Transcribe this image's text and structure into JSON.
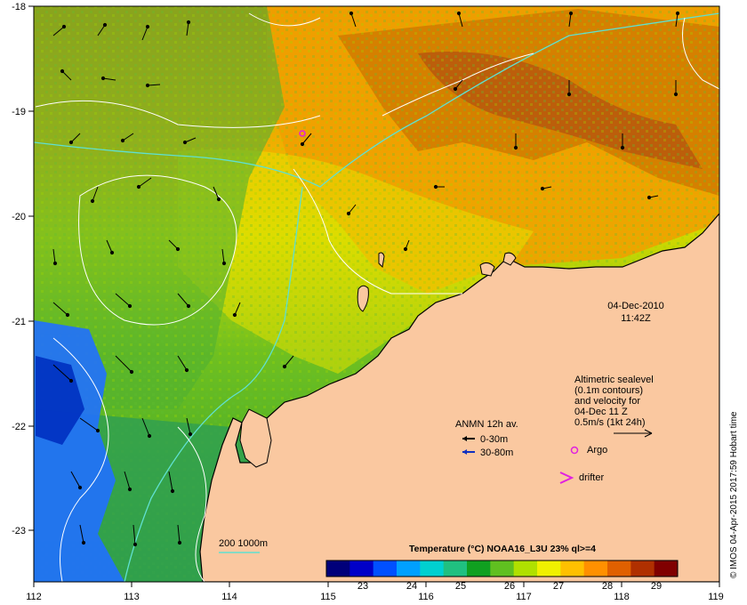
{
  "map": {
    "lon_ticks": [
      "112",
      "113",
      "114",
      "115",
      "116",
      "117",
      "118",
      "119"
    ],
    "lat_ticks": [
      "-18",
      "-19",
      "-20",
      "-21",
      "-22",
      "-23"
    ],
    "lon_range": [
      112,
      119
    ],
    "lat_range": [
      -18,
      -23.6
    ]
  },
  "timestamp": {
    "date": "04-Dec-2010",
    "time": "11:42Z"
  },
  "sealevel_note": {
    "line1": "Altimetric sealevel",
    "line2": "(0.1m contours)",
    "line3": "and velocity for",
    "line4": "04-Dec 11 Z",
    "line5": "0.5m/s (1kt 24h)"
  },
  "legend": {
    "anmn_title": "ANMN 12h av.",
    "anmn_shallow": "0-30m",
    "anmn_deep": "30-80m",
    "argo": "Argo",
    "drifter": "drifter",
    "isobath": "200  1000m",
    "color_shallow": "#000000",
    "color_deep": "#1030c0",
    "color_argo": "#e020e0"
  },
  "colorbar": {
    "title": "Temperature (°C) NOAA16_L3U 23% ql>=4",
    "ticks": [
      "23",
      "24",
      "25",
      "26",
      "27",
      "28",
      "29"
    ],
    "colors": [
      "#00007a",
      "#0000c8",
      "#0050ff",
      "#00a0ff",
      "#00d0d0",
      "#20c080",
      "#10a020",
      "#60c020",
      "#b0e000",
      "#f0f000",
      "#ffc000",
      "#ff9000",
      "#e06000",
      "#b03000",
      "#800000"
    ]
  },
  "credit": "© IMOS 04-Apr-2015 2017:59 Hobart time",
  "colors": {
    "land": "#fac8a0",
    "warm_sea": "#f0a000",
    "cool_sea": "#40b040",
    "cold_sea": "#2070ff"
  }
}
